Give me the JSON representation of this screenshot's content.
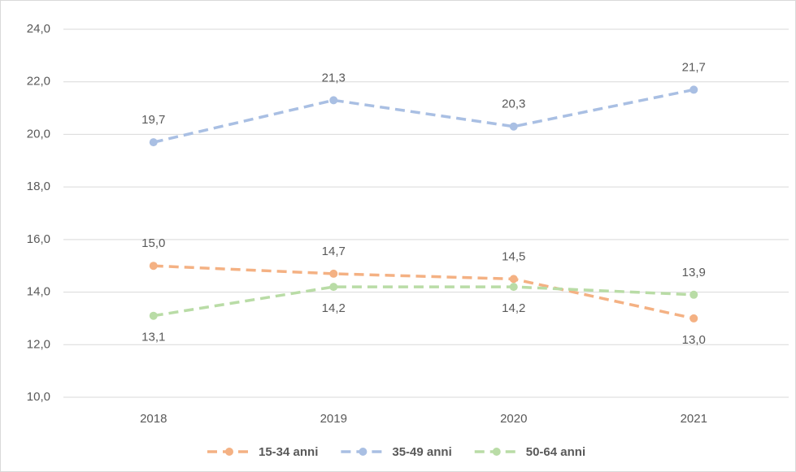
{
  "chart_data": {
    "type": "line",
    "categories": [
      "2018",
      "2019",
      "2020",
      "2021"
    ],
    "series": [
      {
        "name": "15-34 anni",
        "color": "#f4b183",
        "values": [
          15.0,
          14.7,
          14.5,
          13.0
        ],
        "value_labels": [
          "15,0",
          "14,7",
          "14,5",
          "13,0"
        ]
      },
      {
        "name": "35-49 anni",
        "color": "#a9bfe3",
        "values": [
          19.7,
          21.3,
          20.3,
          21.7
        ],
        "value_labels": [
          "19,7",
          "21,3",
          "20,3",
          "21,7"
        ]
      },
      {
        "name": "50-64 anni",
        "color": "#b9dca6",
        "values": [
          13.1,
          14.2,
          14.2,
          13.9
        ],
        "value_labels": [
          "13,1",
          "14,2",
          "14,2",
          "13,9"
        ]
      }
    ],
    "ylim": [
      10,
      24
    ],
    "yticks": [
      {
        "value": 10,
        "label": "10,0"
      },
      {
        "value": 12,
        "label": "12,0"
      },
      {
        "value": 14,
        "label": "14,0"
      },
      {
        "value": 16,
        "label": "16,0"
      },
      {
        "value": 18,
        "label": "18,0"
      },
      {
        "value": 20,
        "label": "20,0"
      },
      {
        "value": 22,
        "label": "22,0"
      },
      {
        "value": 24,
        "label": "24,0"
      }
    ],
    "grid": true,
    "legend": "bottom"
  }
}
